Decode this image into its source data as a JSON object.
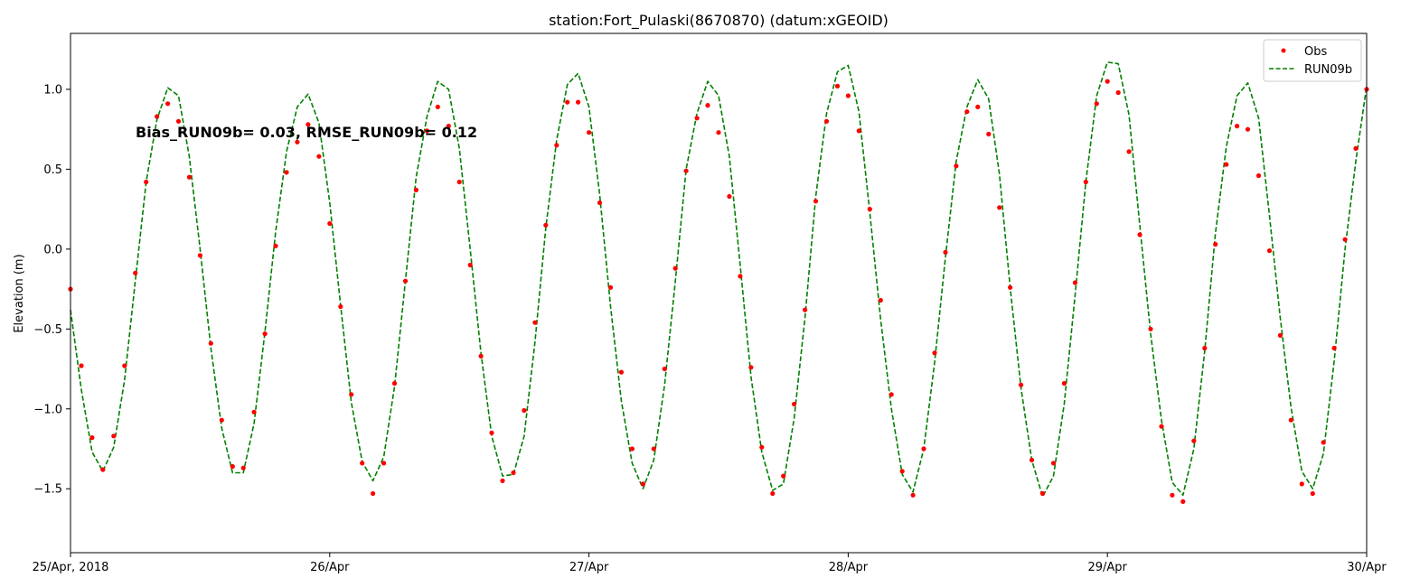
{
  "chart_data": {
    "type": "line",
    "title": "station:Fort_Pulaski(8670870) (datum:xGEOID)",
    "xlabel": "",
    "ylabel": "Elevation (m)",
    "xlim": [
      "2018-04-25 00:00",
      "2018-04-30 00:00"
    ],
    "ylim": [
      -1.9,
      1.35
    ],
    "grid": false,
    "legend_placement": "top-right",
    "annotation": "Bias_RUN09b=  0.03, RMSE_RUN09b=  0.12",
    "x_ticks": [
      {
        "value": "2018-04-25 00:00",
        "label": "25/Apr, 2018"
      },
      {
        "value": "2018-04-26 00:00",
        "label": "26/Apr"
      },
      {
        "value": "2018-04-27 00:00",
        "label": "27/Apr"
      },
      {
        "value": "2018-04-28 00:00",
        "label": "28/Apr"
      },
      {
        "value": "2018-04-29 00:00",
        "label": "29/Apr"
      },
      {
        "value": "2018-04-30 00:00",
        "label": "30/Apr"
      }
    ],
    "y_ticks": [
      {
        "value": -1.5,
        "label": "−1.5"
      },
      {
        "value": -1.0,
        "label": "−1.0"
      },
      {
        "value": -0.5,
        "label": "−0.5"
      },
      {
        "value": 0.0,
        "label": "0.0"
      },
      {
        "value": 0.5,
        "label": "0.5"
      },
      {
        "value": 1.0,
        "label": "1.0"
      }
    ],
    "series": [
      {
        "name": "Obs",
        "style": "markers",
        "color": "#ff0000",
        "x": [
          "2018-04-25 00:00",
          "2018-04-25 01:00",
          "2018-04-25 02:00",
          "2018-04-25 03:00",
          "2018-04-25 04:00",
          "2018-04-25 05:00",
          "2018-04-25 06:00",
          "2018-04-25 07:00",
          "2018-04-25 08:00",
          "2018-04-25 09:00",
          "2018-04-25 10:00",
          "2018-04-25 11:00",
          "2018-04-25 12:00",
          "2018-04-25 13:00",
          "2018-04-25 14:00",
          "2018-04-25 15:00",
          "2018-04-25 16:00",
          "2018-04-25 17:00",
          "2018-04-25 18:00",
          "2018-04-25 19:00",
          "2018-04-25 20:00",
          "2018-04-25 21:00",
          "2018-04-25 22:00",
          "2018-04-25 23:00",
          "2018-04-26 00:00",
          "2018-04-26 01:00",
          "2018-04-26 02:00",
          "2018-04-26 03:00",
          "2018-04-26 04:00",
          "2018-04-26 05:00",
          "2018-04-26 06:00",
          "2018-04-26 07:00",
          "2018-04-26 08:00",
          "2018-04-26 09:00",
          "2018-04-26 10:00",
          "2018-04-26 11:00",
          "2018-04-26 12:00",
          "2018-04-26 13:00",
          "2018-04-26 14:00",
          "2018-04-26 15:00",
          "2018-04-26 16:00",
          "2018-04-26 17:00",
          "2018-04-26 18:00",
          "2018-04-26 19:00",
          "2018-04-26 20:00",
          "2018-04-26 21:00",
          "2018-04-26 22:00",
          "2018-04-26 23:00",
          "2018-04-27 00:00",
          "2018-04-27 01:00",
          "2018-04-27 02:00",
          "2018-04-27 03:00",
          "2018-04-27 04:00",
          "2018-04-27 05:00",
          "2018-04-27 06:00",
          "2018-04-27 07:00",
          "2018-04-27 08:00",
          "2018-04-27 09:00",
          "2018-04-27 10:00",
          "2018-04-27 11:00",
          "2018-04-27 12:00",
          "2018-04-27 13:00",
          "2018-04-27 14:00",
          "2018-04-27 15:00",
          "2018-04-27 16:00",
          "2018-04-27 17:00",
          "2018-04-27 18:00",
          "2018-04-27 19:00",
          "2018-04-27 20:00",
          "2018-04-27 21:00",
          "2018-04-27 22:00",
          "2018-04-27 23:00",
          "2018-04-28 00:00",
          "2018-04-28 01:00",
          "2018-04-28 02:00",
          "2018-04-28 03:00",
          "2018-04-28 04:00",
          "2018-04-28 05:00",
          "2018-04-28 06:00",
          "2018-04-28 07:00",
          "2018-04-28 08:00",
          "2018-04-28 09:00",
          "2018-04-28 10:00",
          "2018-04-28 11:00",
          "2018-04-28 12:00",
          "2018-04-28 13:00",
          "2018-04-28 14:00",
          "2018-04-28 15:00",
          "2018-04-28 16:00",
          "2018-04-28 17:00",
          "2018-04-28 18:00",
          "2018-04-28 19:00",
          "2018-04-28 20:00",
          "2018-04-28 21:00",
          "2018-04-28 22:00",
          "2018-04-28 23:00",
          "2018-04-29 00:00",
          "2018-04-29 01:00",
          "2018-04-29 02:00",
          "2018-04-29 03:00",
          "2018-04-29 04:00",
          "2018-04-29 05:00",
          "2018-04-29 06:00",
          "2018-04-29 07:00",
          "2018-04-29 08:00",
          "2018-04-29 09:00",
          "2018-04-29 10:00",
          "2018-04-29 11:00",
          "2018-04-29 12:00",
          "2018-04-29 13:00",
          "2018-04-29 14:00",
          "2018-04-29 15:00",
          "2018-04-29 16:00",
          "2018-04-29 17:00",
          "2018-04-29 18:00",
          "2018-04-29 19:00",
          "2018-04-29 20:00",
          "2018-04-29 21:00",
          "2018-04-29 22:00",
          "2018-04-29 23:00",
          "2018-04-30 00:00"
        ],
        "values": [
          -0.25,
          -0.73,
          -1.18,
          -1.38,
          -1.17,
          -0.73,
          -0.15,
          0.42,
          0.83,
          0.91,
          0.8,
          0.45,
          -0.04,
          -0.59,
          -1.07,
          -1.36,
          -1.37,
          -1.02,
          -0.53,
          0.02,
          0.48,
          0.67,
          0.78,
          0.58,
          0.16,
          -0.36,
          -0.91,
          -1.34,
          -1.53,
          -1.34,
          -0.84,
          -0.2,
          0.37,
          0.74,
          0.89,
          0.77,
          0.42,
          -0.1,
          -0.67,
          -1.15,
          -1.45,
          -1.4,
          -1.01,
          -0.46,
          0.15,
          0.65,
          0.92,
          0.92,
          0.73,
          0.29,
          -0.24,
          -0.77,
          -1.25,
          -1.47,
          -1.25,
          -0.75,
          -0.12,
          0.49,
          0.82,
          0.9,
          0.73,
          0.33,
          -0.17,
          -0.74,
          -1.24,
          -1.53,
          -1.42,
          -0.97,
          -0.38,
          0.3,
          0.8,
          1.02,
          0.96,
          0.74,
          0.25,
          -0.32,
          -0.91,
          -1.39,
          -1.54,
          -1.25,
          -0.65,
          -0.02,
          0.52,
          0.86,
          0.89,
          0.72,
          0.26,
          -0.24,
          -0.85,
          -1.32,
          -1.53,
          -1.34,
          -0.84,
          -0.21,
          0.42,
          0.91,
          1.05,
          0.98,
          0.61,
          0.09,
          -0.5,
          -1.11,
          -1.54,
          -1.58,
          -1.2,
          -0.62,
          0.03,
          0.53,
          0.77,
          0.75,
          0.46,
          -0.01,
          -0.54,
          -1.07,
          -1.47,
          -1.53,
          -1.21,
          -0.62,
          0.06,
          0.63,
          1.0
        ]
      },
      {
        "name": "RUN09b",
        "style": "dashed",
        "color": "#008000",
        "x": [
          "2018-04-25 00:00",
          "2018-04-25 01:00",
          "2018-04-25 02:00",
          "2018-04-25 03:00",
          "2018-04-25 04:00",
          "2018-04-25 05:00",
          "2018-04-25 06:00",
          "2018-04-25 07:00",
          "2018-04-25 08:00",
          "2018-04-25 09:00",
          "2018-04-25 10:00",
          "2018-04-25 11:00",
          "2018-04-25 12:00",
          "2018-04-25 13:00",
          "2018-04-25 14:00",
          "2018-04-25 15:00",
          "2018-04-25 16:00",
          "2018-04-25 17:00",
          "2018-04-25 18:00",
          "2018-04-25 19:00",
          "2018-04-25 20:00",
          "2018-04-25 21:00",
          "2018-04-25 22:00",
          "2018-04-25 23:00",
          "2018-04-26 00:00",
          "2018-04-26 01:00",
          "2018-04-26 02:00",
          "2018-04-26 03:00",
          "2018-04-26 04:00",
          "2018-04-26 05:00",
          "2018-04-26 06:00",
          "2018-04-26 07:00",
          "2018-04-26 08:00",
          "2018-04-26 09:00",
          "2018-04-26 10:00",
          "2018-04-26 11:00",
          "2018-04-26 12:00",
          "2018-04-26 13:00",
          "2018-04-26 14:00",
          "2018-04-26 15:00",
          "2018-04-26 16:00",
          "2018-04-26 17:00",
          "2018-04-26 18:00",
          "2018-04-26 19:00",
          "2018-04-26 20:00",
          "2018-04-26 21:00",
          "2018-04-26 22:00",
          "2018-04-26 23:00",
          "2018-04-27 00:00",
          "2018-04-27 01:00",
          "2018-04-27 02:00",
          "2018-04-27 03:00",
          "2018-04-27 04:00",
          "2018-04-27 05:00",
          "2018-04-27 06:00",
          "2018-04-27 07:00",
          "2018-04-27 08:00",
          "2018-04-27 09:00",
          "2018-04-27 10:00",
          "2018-04-27 11:00",
          "2018-04-27 12:00",
          "2018-04-27 13:00",
          "2018-04-27 14:00",
          "2018-04-27 15:00",
          "2018-04-27 16:00",
          "2018-04-27 17:00",
          "2018-04-27 18:00",
          "2018-04-27 19:00",
          "2018-04-27 20:00",
          "2018-04-27 21:00",
          "2018-04-27 22:00",
          "2018-04-27 23:00",
          "2018-04-28 00:00",
          "2018-04-28 01:00",
          "2018-04-28 02:00",
          "2018-04-28 03:00",
          "2018-04-28 04:00",
          "2018-04-28 05:00",
          "2018-04-28 06:00",
          "2018-04-28 07:00",
          "2018-04-28 08:00",
          "2018-04-28 09:00",
          "2018-04-28 10:00",
          "2018-04-28 11:00",
          "2018-04-28 12:00",
          "2018-04-28 13:00",
          "2018-04-28 14:00",
          "2018-04-28 15:00",
          "2018-04-28 16:00",
          "2018-04-28 17:00",
          "2018-04-28 18:00",
          "2018-04-28 19:00",
          "2018-04-28 20:00",
          "2018-04-28 21:00",
          "2018-04-28 22:00",
          "2018-04-28 23:00",
          "2018-04-29 00:00",
          "2018-04-29 01:00",
          "2018-04-29 02:00",
          "2018-04-29 03:00",
          "2018-04-29 04:00",
          "2018-04-29 05:00",
          "2018-04-29 06:00",
          "2018-04-29 07:00",
          "2018-04-29 08:00",
          "2018-04-29 09:00",
          "2018-04-29 10:00",
          "2018-04-29 11:00",
          "2018-04-29 12:00",
          "2018-04-29 13:00",
          "2018-04-29 14:00",
          "2018-04-29 15:00",
          "2018-04-29 16:00",
          "2018-04-29 17:00",
          "2018-04-29 18:00",
          "2018-04-29 19:00",
          "2018-04-29 20:00",
          "2018-04-29 21:00",
          "2018-04-29 22:00",
          "2018-04-29 23:00",
          "2018-04-30 00:00"
        ],
        "values": [
          -0.38,
          -0.88,
          -1.27,
          -1.39,
          -1.24,
          -0.82,
          -0.2,
          0.42,
          0.81,
          1.01,
          0.96,
          0.58,
          0.0,
          -0.62,
          -1.12,
          -1.4,
          -1.4,
          -1.09,
          -0.52,
          0.11,
          0.61,
          0.89,
          0.97,
          0.79,
          0.29,
          -0.35,
          -0.96,
          -1.33,
          -1.45,
          -1.3,
          -0.86,
          -0.2,
          0.45,
          0.83,
          1.05,
          1.0,
          0.63,
          0.0,
          -0.65,
          -1.17,
          -1.42,
          -1.41,
          -1.17,
          -0.58,
          0.13,
          0.68,
          1.03,
          1.1,
          0.89,
          0.34,
          -0.36,
          -0.95,
          -1.34,
          -1.5,
          -1.32,
          -0.85,
          -0.2,
          0.5,
          0.85,
          1.05,
          0.96,
          0.58,
          -0.1,
          -0.8,
          -1.27,
          -1.51,
          -1.47,
          -1.06,
          -0.43,
          0.33,
          0.85,
          1.11,
          1.15,
          0.86,
          0.23,
          -0.44,
          -1.0,
          -1.41,
          -1.52,
          -1.25,
          -0.71,
          -0.05,
          0.55,
          0.89,
          1.06,
          0.94,
          0.47,
          -0.24,
          -0.87,
          -1.32,
          -1.55,
          -1.42,
          -0.97,
          -0.29,
          0.42,
          0.96,
          1.17,
          1.16,
          0.84,
          0.15,
          -0.53,
          -1.07,
          -1.46,
          -1.54,
          -1.25,
          -0.64,
          0.1,
          0.64,
          0.96,
          1.04,
          0.82,
          0.21,
          -0.43,
          -0.99,
          -1.39,
          -1.5,
          -1.28,
          -0.7,
          0.0,
          0.55,
          1.02
        ]
      }
    ]
  }
}
